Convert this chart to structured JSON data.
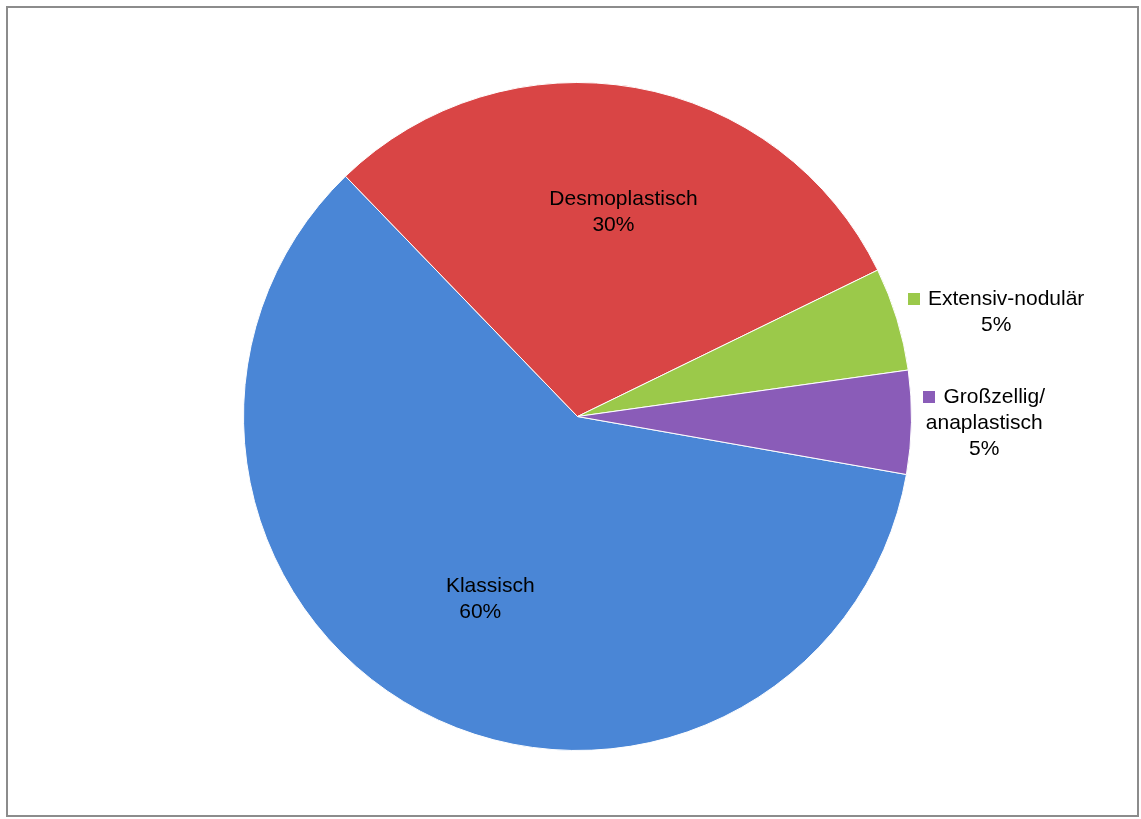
{
  "chart_data": {
    "type": "pie",
    "categories": [
      "Klassisch",
      "Desmoplastisch",
      "Extensiv-nodulär",
      "Großzellig/\nanaplastisch"
    ],
    "values": [
      60,
      30,
      5,
      5
    ],
    "colors": [
      "#4a86d6",
      "#d94545",
      "#9bc94a",
      "#8a5cb8"
    ],
    "value_labels": [
      "60%",
      "30%",
      "5%",
      "5%"
    ],
    "legend": "right"
  }
}
